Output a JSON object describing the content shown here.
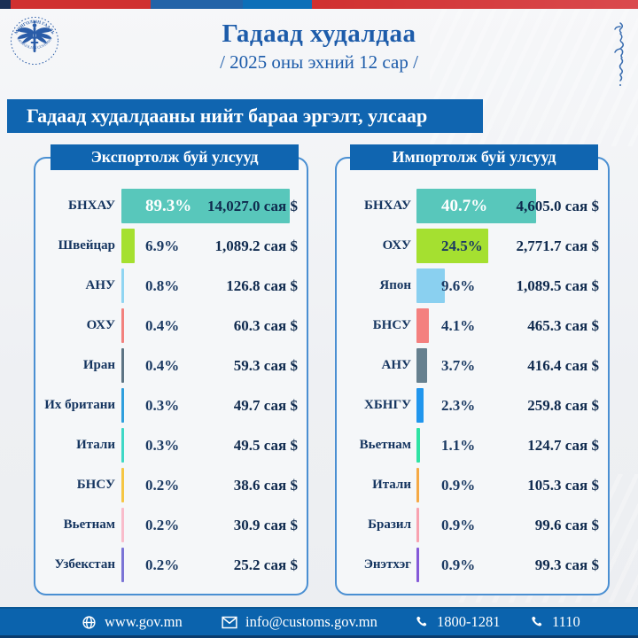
{
  "header": {
    "title": "Гадаад худалдаа",
    "subtitle": "/ 2025 оны эхний 12 сар /",
    "logo_top_text": "МОНГОЛЫН ГААЛЬ",
    "logo_bottom_text": "MONGOLIAN CUSTOMS"
  },
  "banner": {
    "text": "Гадаад худалдааны нийт бараа эргэлт, улсаар"
  },
  "colors": {
    "primary_blue": "#1065b0",
    "title_navy": "#1d5caa",
    "text_navy": "#153560",
    "footer_blue": "#0b63ad",
    "panel_border": "#4a8fd2",
    "top_strip_segments": [
      "#1a2f55",
      "#d03030",
      "#2363a8",
      "#0d6fb8",
      "#d03030"
    ]
  },
  "chart_data": [
    {
      "type": "bar",
      "orientation": "horizontal",
      "title": "Экспортолж буй улсууд",
      "unit": "сая $",
      "categories": [
        "БНХАУ",
        "Швейцар",
        "АНУ",
        "ОХУ",
        "Иран",
        "Их британи",
        "Итали",
        "БНСУ",
        "Вьетнам",
        "Узбекстан"
      ],
      "percents": [
        89.3,
        6.9,
        0.8,
        0.4,
        0.4,
        0.3,
        0.3,
        0.2,
        0.2,
        0.2
      ],
      "values": [
        14027.0,
        1089.2,
        126.8,
        60.3,
        59.3,
        49.7,
        49.5,
        38.6,
        30.9,
        25.2
      ],
      "percent_labels": [
        "89.3%",
        "6.9%",
        "0.8%",
        "0.4%",
        "0.4%",
        "0.3%",
        "0.3%",
        "0.2%",
        "0.2%",
        "0.2%"
      ],
      "value_labels": [
        "14,027.0 сая $",
        "1,089.2 сая $",
        "126.8 сая $",
        "60.3 сая $",
        "59.3 сая $",
        "49.7 сая $",
        "49.5 сая $",
        "38.6 сая $",
        "30.9 сая $",
        "25.2 сая $"
      ],
      "bar_colors": [
        "#58c7bb",
        "#a5e030",
        "#90d5f2",
        "#f2817e",
        "#5d7484",
        "#2f9fdd",
        "#3fd8c6",
        "#f5c644",
        "#f9bccb",
        "#7b74d6"
      ],
      "legend": "none",
      "grid": "off"
    },
    {
      "type": "bar",
      "orientation": "horizontal",
      "title": "Импортолж буй улсууд",
      "unit": "сая $",
      "categories": [
        "БНХАУ",
        "ОХУ",
        "Япон",
        "БНСУ",
        "АНУ",
        "ХБНГУ",
        "Вьетнам",
        "Итали",
        "Бразил",
        "Энэтхэг"
      ],
      "percents": [
        40.7,
        24.5,
        9.6,
        4.1,
        3.7,
        2.3,
        1.1,
        0.9,
        0.9,
        0.9
      ],
      "values": [
        4605.0,
        2771.7,
        1089.5,
        465.3,
        416.4,
        259.8,
        124.7,
        105.3,
        99.6,
        99.3
      ],
      "percent_labels": [
        "40.7%",
        "24.5%",
        "9.6%",
        "4.1%",
        "3.7%",
        "2.3%",
        "1.1%",
        "0.9%",
        "0.9%",
        "0.9%"
      ],
      "value_labels": [
        "4,605.0 сая $",
        "2,771.7 сая $",
        "1,089.5 сая $",
        "465.3 сая $",
        "416.4 сая $",
        "259.8 сая $",
        "124.7 сая $",
        "105.3 сая $",
        "99.6 сая $",
        "99.3 сая $"
      ],
      "bar_colors": [
        "#58c7bb",
        "#a5e030",
        "#8ad0f0",
        "#f4807f",
        "#66808f",
        "#2196ed",
        "#2fe3a4",
        "#f5a945",
        "#f8a2b0",
        "#8459d8"
      ],
      "legend": "none",
      "grid": "off"
    }
  ],
  "footer": {
    "items": [
      {
        "icon": "globe-icon",
        "label": "www.gov.mn"
      },
      {
        "icon": "envelope-icon",
        "label": "info@customs.gov.mn"
      },
      {
        "icon": "phone-icon",
        "label": "1800-1281"
      },
      {
        "icon": "phone-icon",
        "label": "1110"
      }
    ]
  }
}
